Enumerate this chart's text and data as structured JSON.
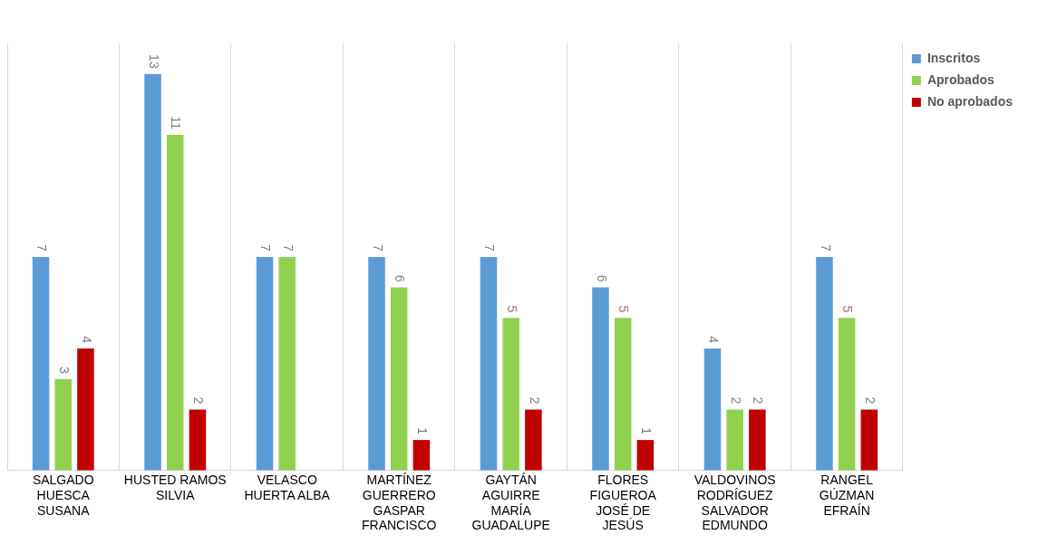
{
  "chart_data": {
    "type": "bar",
    "categories": [
      "SALGADO HUESCA SUSANA",
      "HUSTED RAMOS SILVIA",
      "VELASCO HUERTA ALBA",
      "MARTÍNEZ GUERRERO GASPAR FRANCISCO",
      "GAYTÁN AGUIRRE MARÍA GUADALUPE",
      "FLORES FIGUEROA JOSÉ DE JESÚS",
      "VALDOVINOS RODRÍGUEZ SALVADOR EDMUNDO",
      "RANGEL GÚZMAN EFRAÍN"
    ],
    "series": [
      {
        "name": "Inscritos",
        "color": "#5b9bd5",
        "values": [
          7,
          13,
          7,
          7,
          7,
          6,
          4,
          7
        ]
      },
      {
        "name": "Aprobados",
        "color": "#92d050",
        "values": [
          3,
          11,
          7,
          6,
          5,
          5,
          2,
          5
        ]
      },
      {
        "name": "No aprobados",
        "color": "#c00000",
        "values": [
          4,
          2,
          null,
          1,
          2,
          1,
          2,
          2
        ]
      }
    ],
    "data_labels": true,
    "grid": "x",
    "legend": "right"
  }
}
